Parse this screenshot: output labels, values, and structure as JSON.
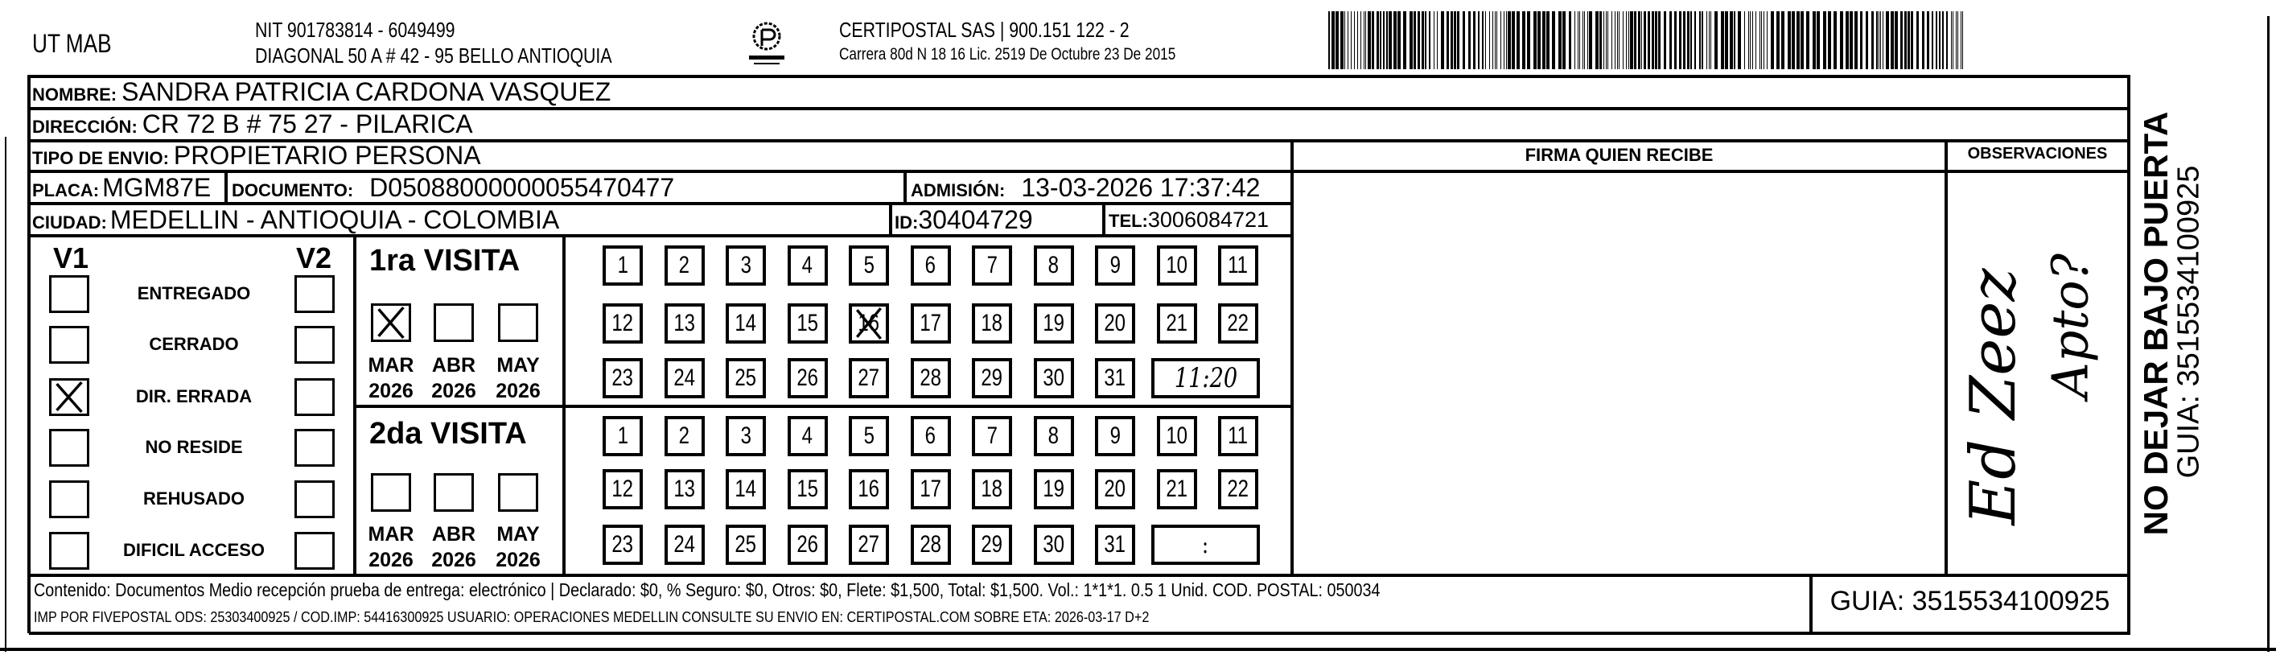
{
  "header": {
    "company": "UT MAB",
    "nit": "NIT 901783814 - 6049499",
    "address": "DIAGONAL 50 A # 42 - 95  BELLO  ANTIOQUIA",
    "logo_text": "CERTIPOSTAL",
    "carrier": "CERTIPOSTAL SAS | 900.151 122 - 2",
    "license": "Carrera 80d N 18 16  Lic. 2519 De Octubre 23 De 2015",
    "barcode_value": "3515534100925"
  },
  "fields": {
    "nombre_label": "NOMBRE:",
    "nombre": "SANDRA PATRICIA CARDONA VASQUEZ",
    "direccion_label": "DIRECCIÓN:",
    "direccion": "CR 72 B # 75 27 - PILARICA",
    "tipo_label": "TIPO DE ENVIO:",
    "tipo": "PROPIETARIO PERSONA",
    "placa_label": "PLACA:",
    "placa": "MGM87E",
    "documento_label": "DOCUMENTO:",
    "documento": "D05088000000055470477",
    "admision_label": "ADMISIÓN:",
    "admision": "13-03-2026 17:37:42",
    "ciudad_label": "CIUDAD:",
    "ciudad": "MEDELLIN - ANTIOQUIA - COLOMBIA",
    "id_label": "ID:",
    "id": "30404729",
    "tel_label": "TEL:",
    "tel": "3006084721"
  },
  "columns": {
    "firma": "FIRMA QUIEN RECIBE",
    "observaciones": "OBSERVACIONES"
  },
  "status": {
    "v1": "V1",
    "v2": "V2",
    "items": [
      "ENTREGADO",
      "CERRADO",
      "DIR. ERRADA",
      "NO RESIDE",
      "REHUSADO",
      "DIFICIL ACCESO"
    ],
    "v1_checked": "DIR. ERRADA",
    "v2_checked": ""
  },
  "visits": [
    {
      "title": "1ra VISITA",
      "months": [
        {
          "m": "MAR",
          "y": "2026"
        },
        {
          "m": "ABR",
          "y": "2026"
        },
        {
          "m": "MAY",
          "y": "2026"
        }
      ],
      "month_checked": "MAR",
      "day_marked": 16,
      "time": "11:20"
    },
    {
      "title": "2da VISITA",
      "months": [
        {
          "m": "MAR",
          "y": "2026"
        },
        {
          "m": "ABR",
          "y": "2026"
        },
        {
          "m": "MAY",
          "y": "2026"
        }
      ],
      "month_checked": "",
      "day_marked": null,
      "time": ":"
    }
  ],
  "observations_handwritten": {
    "line1": "Ed Zeez",
    "line2": "Apto?"
  },
  "side": {
    "warning": "NO DEJAR BAJO PUERTA",
    "guia": "GUIA: 3515534100925"
  },
  "footer": {
    "line1": "Contenido: Documentos Medio recepción prueba de entrega: electrónico | Declarado: $0, % Seguro: $0, Otros: $0, Flete: $1,500, Total: $1,500. Vol.: 1*1*1. 0.5  1 Unid. COD. POSTAL: 050034",
    "line2": "IMP POR FIVEPOSTAL ODS: 25303400925 / COD.IMP: 54416300925 USUARIO: OPERACIONES MEDELLIN CONSULTE SU ENVIO EN: CERTIPOSTAL.COM SOBRE ETA: 2026-03-17 D+2",
    "guia": "GUIA: 3515534100925"
  }
}
